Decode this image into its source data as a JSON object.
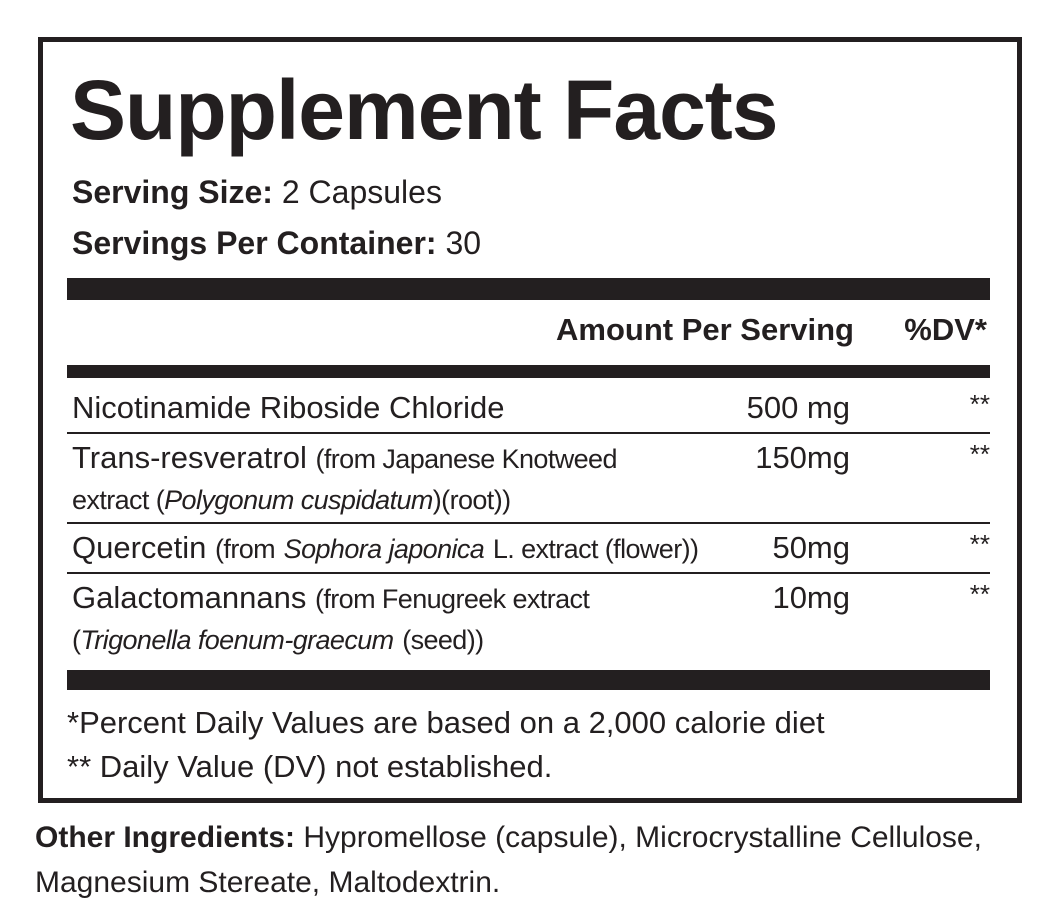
{
  "title": "Supplement Facts",
  "serving_size": {
    "label": "Serving Size:",
    "value": "2 Capsules"
  },
  "servings_per_container": {
    "label": "Servings Per Container:",
    "value": "30"
  },
  "header": {
    "amount": "Amount Per Serving",
    "dv": "%DV*"
  },
  "rows": [
    {
      "name": "Nicotinamide Riboside Chloride",
      "amount": "500 mg",
      "dv": "**"
    },
    {
      "name": "Trans-resveratrol",
      "detail": [
        "(from Japanese Knotweed",
        "extract (",
        "Polygonum cuspidatum",
        ")(root))"
      ],
      "amount": "150mg",
      "dv": "**"
    },
    {
      "name": "Quercetin",
      "detail": [
        "(from",
        "Sophora japonica",
        "L. extract (flower))"
      ],
      "amount": "50mg",
      "dv": "**"
    },
    {
      "name": "Galactomannans",
      "detail": [
        "(from Fenugreek extract",
        "(",
        "Trigonella foenum-graecum",
        "(seed))"
      ],
      "amount": "10mg",
      "dv": "**"
    }
  ],
  "footnotes": [
    "*Percent Daily Values are based on a 2,000 calorie diet",
    "** Daily Value (DV) not established."
  ],
  "other_ingredients": {
    "label": "Other Ingredients:",
    "value": "Hypromellose (capsule), Microcrystalline Cellulose, Magnesium Stereate, Maltodextrin."
  }
}
